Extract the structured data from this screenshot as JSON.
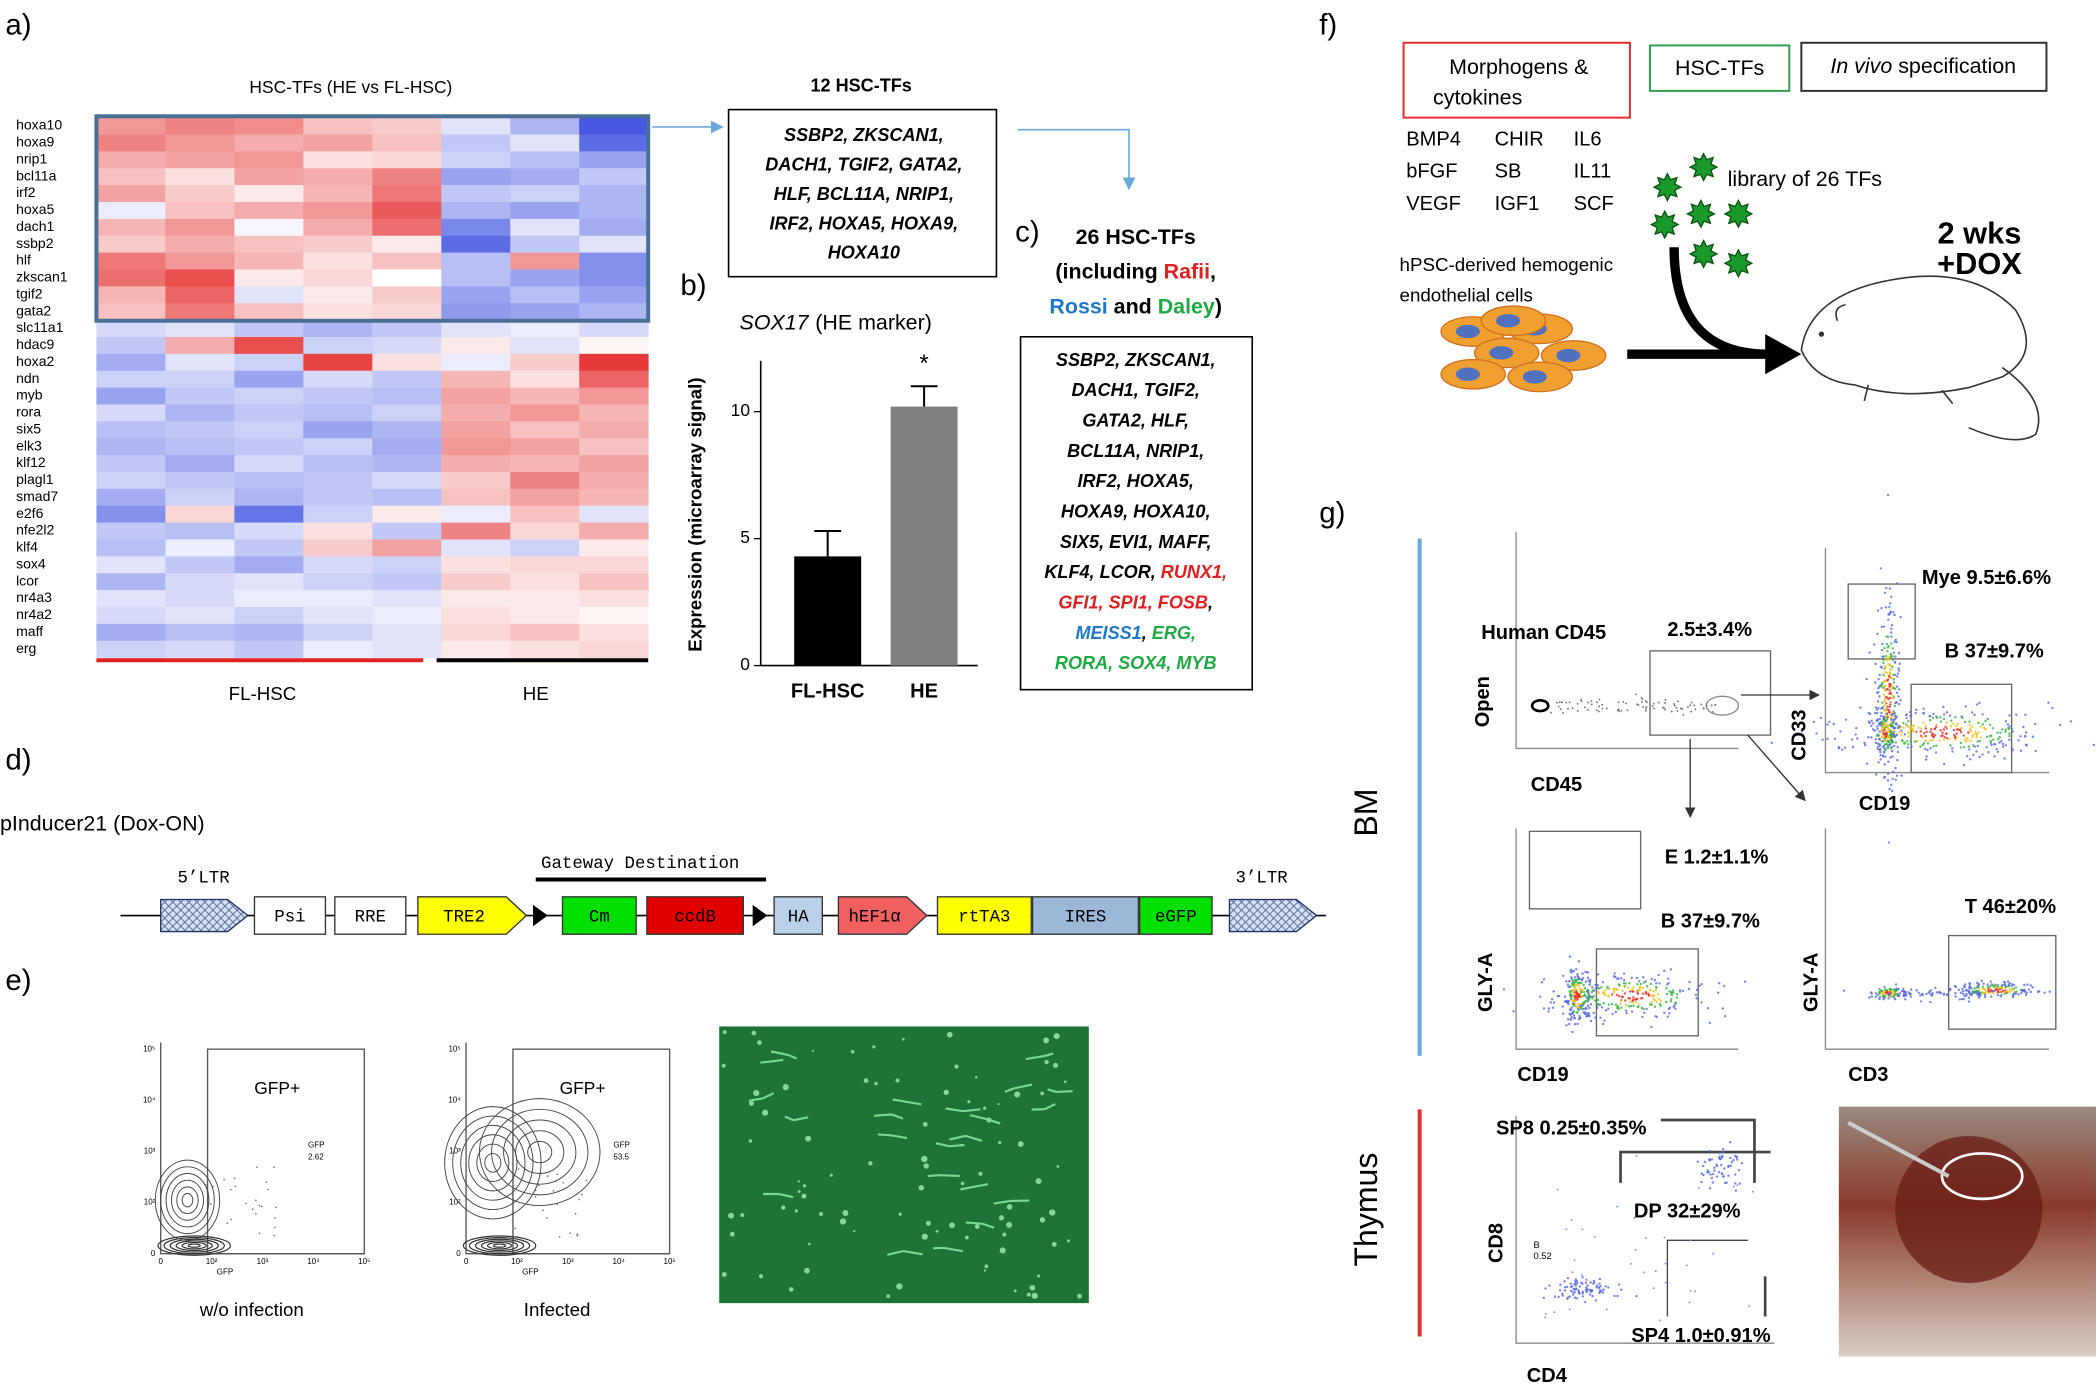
{
  "panel_labels": [
    "a)",
    "b)",
    "c)",
    "d)",
    "e)",
    "f)",
    "g)"
  ],
  "heatmap": {
    "title": "HSC-TFs (HE vs FL-HSC)",
    "genes": [
      "hoxa10",
      "hoxa9",
      "nrip1",
      "bcl11a",
      "irf2",
      "hoxa5",
      "dach1",
      "ssbp2",
      "hlf",
      "zkscan1",
      "tgif2",
      "gata2",
      "slc11a1",
      "hdac9",
      "hoxa2",
      "ndn",
      "myb",
      "rora",
      "six5",
      "elk3",
      "klf12",
      "plagl1",
      "smad7",
      "e2f6",
      "nfe2l2",
      "klf4",
      "sox4",
      "lcor",
      "nr4a3",
      "nr4a2",
      "maff",
      "erg"
    ],
    "values": [
      [
        1.0,
        1.2,
        1.1,
        0.6,
        0.5,
        -0.3,
        -0.8,
        -1.8
      ],
      [
        1.2,
        1.0,
        0.8,
        0.9,
        0.6,
        -0.6,
        -0.3,
        -1.6
      ],
      [
        0.8,
        0.9,
        1.0,
        0.3,
        0.4,
        -0.5,
        -0.7,
        -1.0
      ],
      [
        0.6,
        0.3,
        0.9,
        0.8,
        1.2,
        -1.0,
        -0.9,
        -0.6
      ],
      [
        0.9,
        0.5,
        0.2,
        0.7,
        1.3,
        -0.6,
        -0.5,
        -0.8
      ],
      [
        -0.2,
        0.6,
        0.8,
        1.0,
        1.6,
        -0.8,
        -1.0,
        -0.8
      ],
      [
        0.7,
        1.0,
        -0.1,
        0.8,
        1.4,
        -1.3,
        -0.3,
        -0.9
      ],
      [
        0.5,
        0.8,
        0.6,
        0.5,
        0.2,
        -1.6,
        -0.6,
        -0.3
      ],
      [
        1.3,
        1.0,
        0.7,
        0.3,
        0.6,
        -0.7,
        1.0,
        -1.2
      ],
      [
        1.4,
        1.7,
        0.2,
        0.4,
        0.0,
        -0.7,
        -1.0,
        -1.2
      ],
      [
        0.7,
        1.5,
        -0.3,
        0.2,
        0.5,
        -1.0,
        -0.7,
        -1.0
      ],
      [
        0.6,
        1.3,
        0.6,
        0.3,
        0.4,
        -1.1,
        -1.0,
        -0.8
      ],
      [
        -0.4,
        -0.3,
        -0.6,
        -0.8,
        -0.6,
        -0.3,
        -0.2,
        -0.4
      ],
      [
        -0.6,
        0.8,
        1.7,
        -0.5,
        -0.4,
        0.2,
        -0.3,
        0.1
      ],
      [
        -0.9,
        -0.3,
        -0.5,
        1.8,
        0.3,
        -0.2,
        0.5,
        1.9
      ],
      [
        -0.5,
        -0.5,
        -1.0,
        -0.4,
        -0.6,
        0.7,
        0.3,
        1.5
      ],
      [
        -1.0,
        -0.6,
        -0.5,
        -0.6,
        -0.7,
        0.9,
        0.7,
        1.0
      ],
      [
        -0.4,
        -0.8,
        -0.6,
        -0.7,
        -0.5,
        0.8,
        1.0,
        0.7
      ],
      [
        -0.7,
        -0.6,
        -0.5,
        -1.0,
        -0.8,
        0.9,
        0.6,
        0.8
      ],
      [
        -0.8,
        -0.7,
        -0.6,
        -0.5,
        -0.9,
        1.0,
        0.9,
        0.6
      ],
      [
        -0.6,
        -0.9,
        -0.4,
        -0.7,
        -0.8,
        0.8,
        0.7,
        0.9
      ],
      [
        -0.5,
        -0.6,
        -0.7,
        -0.6,
        -0.4,
        0.5,
        1.2,
        0.8
      ],
      [
        -0.9,
        -0.5,
        -0.8,
        -0.6,
        -0.7,
        0.6,
        0.9,
        0.7
      ],
      [
        -1.2,
        0.4,
        -1.5,
        -0.5,
        0.2,
        -0.2,
        0.6,
        -0.3
      ],
      [
        -0.6,
        -0.7,
        -0.4,
        0.3,
        -0.6,
        1.2,
        0.4,
        0.8
      ],
      [
        -0.7,
        -0.2,
        -0.6,
        0.5,
        0.9,
        -0.3,
        -0.5,
        0.2
      ],
      [
        -0.3,
        -0.6,
        -0.9,
        -0.4,
        -0.5,
        0.3,
        0.4,
        0.4
      ],
      [
        -0.8,
        -0.4,
        -0.3,
        -0.5,
        -0.6,
        0.5,
        0.3,
        0.6
      ],
      [
        -0.3,
        -0.4,
        -0.2,
        -0.2,
        -0.3,
        0.2,
        0.2,
        0.3
      ],
      [
        -0.4,
        -0.3,
        -0.5,
        -0.3,
        -0.2,
        0.3,
        0.2,
        0.1
      ],
      [
        -0.9,
        -0.7,
        -0.8,
        -0.5,
        -0.3,
        0.4,
        0.6,
        0.3
      ],
      [
        -0.5,
        -0.4,
        -0.6,
        -0.2,
        -0.3,
        0.2,
        0.3,
        0.4
      ]
    ],
    "groups": [
      "FL-HSC",
      "HE"
    ],
    "group_colors": [
      "#e02020",
      "#000000"
    ],
    "colors": {
      "low": "#3d50e0",
      "high": "#e63a3a"
    }
  },
  "box_12": {
    "title": "12 HSC-TFs",
    "lines": [
      "SSBP2, ZKSCAN1,",
      "DACH1, TGIF2, GATA2,",
      "HLF, BCL11A, NRIP1,",
      "IRF2, HOXA5, HOXA9,",
      "HOXA10"
    ]
  },
  "chart_data": {
    "type": "bar",
    "title": "SOX17",
    "subtitle": "(HE marker)",
    "y_label": "Expression (microarray signal)",
    "categories": [
      "FL-HSC",
      "HE"
    ],
    "values": [
      4.3,
      10.2
    ],
    "errors": [
      1.0,
      0.8
    ],
    "colors": [
      "#000000",
      "#808080"
    ],
    "ylim": [
      0,
      12
    ],
    "yticks": [
      0,
      5,
      10
    ],
    "annotation": "*"
  },
  "box_26": {
    "heading": [
      [
        {
          "text": "26 HSC-TFs",
          "color": "#000000"
        }
      ],
      [
        {
          "text": "(including ",
          "color": "#000000"
        },
        {
          "text": "Rafii",
          "color": "#e02020"
        },
        {
          "text": ",",
          "color": "#000000"
        }
      ],
      [
        {
          "text": "Rossi",
          "color": "#1f78c8"
        },
        {
          "text": " and ",
          "color": "#000000"
        },
        {
          "text": "Daley",
          "color": "#20a845"
        },
        {
          "text": ")",
          "color": "#000000"
        }
      ]
    ],
    "lines": [
      [
        {
          "text": "SSBP2, ZKSCAN1,",
          "color": "#000000"
        }
      ],
      [
        {
          "text": "DACH1, TGIF2,",
          "color": "#000000"
        }
      ],
      [
        {
          "text": "GATA2, HLF,",
          "color": "#000000"
        }
      ],
      [
        {
          "text": "BCL11A, NRIP1,",
          "color": "#000000"
        }
      ],
      [
        {
          "text": "IRF2, HOXA5,",
          "color": "#000000"
        }
      ],
      [
        {
          "text": "HOXA9, HOXA10,",
          "color": "#000000"
        }
      ],
      [
        {
          "text": "SIX5, EVI1, MAFF,",
          "color": "#000000"
        }
      ],
      [
        {
          "text": "KLF4, LCOR, ",
          "color": "#000000"
        },
        {
          "text": "RUNX1,",
          "color": "#e02020"
        }
      ],
      [
        {
          "text": "GFI1, SPI1, FOSB",
          "color": "#e02020"
        },
        {
          "text": ",",
          "color": "#000000"
        }
      ],
      [
        {
          "text": "MEISS1",
          "color": "#1f78c8"
        },
        {
          "text": ", ",
          "color": "#000000"
        },
        {
          "text": "ERG,",
          "color": "#20a845"
        }
      ],
      [
        {
          "text": "RORA, SOX4, MYB",
          "color": "#20a845"
        }
      ]
    ]
  },
  "construct": {
    "name": "pInducer21 (Dox-ON)",
    "ltr5": "5’LTR",
    "ltr3": "3’LTR",
    "gateway": "Gateway Destination",
    "elements": [
      {
        "label": "Psi",
        "color": "#ffffff"
      },
      {
        "label": "RRE",
        "color": "#ffffff"
      },
      {
        "label": "TRE2",
        "color": "#ffff00"
      },
      {
        "label": "Cm",
        "color": "#00e000"
      },
      {
        "label": "ccdB",
        "color": "#e00000"
      },
      {
        "label": "HA",
        "color": "#b8d0e8"
      },
      {
        "label": "hEF1α",
        "color": "#f06060"
      },
      {
        "label": "rtTA3",
        "color": "#ffff00"
      },
      {
        "label": "IRES",
        "color": "#9bb8d8"
      },
      {
        "label": "eGFP",
        "color": "#00e000"
      }
    ]
  },
  "panel_e": {
    "plots": [
      {
        "gate": "GFP+",
        "gate_label": "GFP",
        "gate_value": "2.62",
        "x_label": "GFP",
        "caption": "w/o infection"
      },
      {
        "gate": "GFP+",
        "gate_label": "GFP",
        "gate_value": "53.5",
        "x_label": "GFP",
        "caption": "Infected"
      }
    ],
    "yticks": [
      "10⁵",
      "10⁴",
      "10³",
      "10²",
      "0"
    ],
    "xticks": [
      "0",
      "10²",
      "10³",
      "10⁴",
      "10⁵"
    ]
  },
  "panel_f": {
    "box_morphogens": [
      "Morphogens &",
      "cytokines"
    ],
    "box_tfs": "HSC-TFs",
    "box_invivo": {
      "italic": "In vivo",
      "rest": " specification"
    },
    "factors": [
      "BMP4",
      "CHIR",
      "IL6",
      "bFGF",
      "SB",
      "IL11",
      "VEGF",
      "IGF1",
      "SCF"
    ],
    "library": "library of 26 TFs",
    "cells": [
      "hPSC-derived hemogenic",
      "endothelial cells"
    ],
    "dox": [
      "2 wks",
      "+DOX"
    ]
  },
  "panel_g": {
    "tissues": [
      "BM",
      "Thymus"
    ],
    "g1": {
      "title": "Human CD45",
      "gate": "2.5±3.4%",
      "y": "Open",
      "x": "CD45"
    },
    "g2": {
      "gate1": "Mye 9.5±6.6%",
      "gate2": "B 37±9.7%",
      "y": "CD33",
      "x": "CD19"
    },
    "g3": {
      "gate1": "E 1.2±1.1%",
      "gate2": "B 37±9.7%",
      "y": "GLY-A",
      "x": "CD19"
    },
    "g4": {
      "gate": "T 46±20%",
      "y": "GLY-A",
      "x": "CD3"
    },
    "thymus": {
      "sp8": "SP8 0.25±0.35%",
      "dp": "DP 32±29%",
      "b_label": "B",
      "b_value": "0.52",
      "sp4": "SP4 1.0±0.91%",
      "y": "CD8",
      "x": "CD4"
    }
  }
}
